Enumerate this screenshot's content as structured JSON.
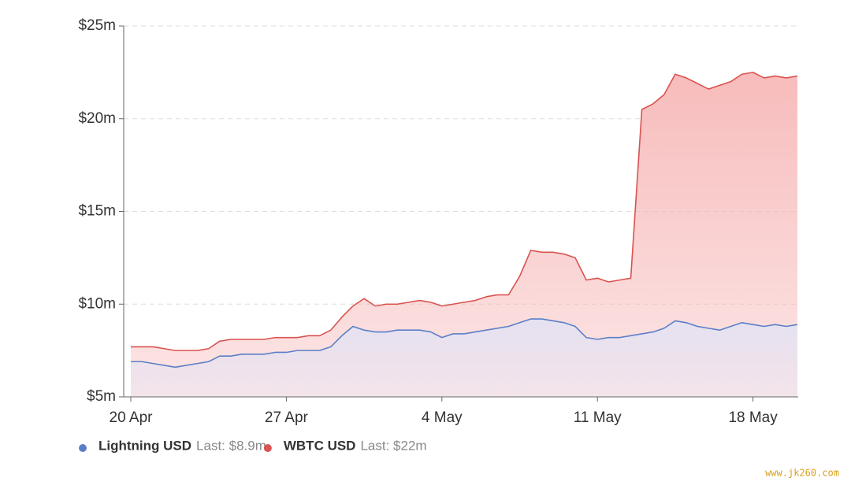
{
  "chart_data": {
    "type": "line",
    "categories": [
      "20 Apr",
      null,
      null,
      null,
      null,
      null,
      null,
      null,
      null,
      null,
      null,
      null,
      null,
      null,
      "27 Apr",
      null,
      null,
      null,
      null,
      null,
      null,
      null,
      null,
      null,
      null,
      null,
      null,
      null,
      "4 May",
      null,
      null,
      null,
      null,
      null,
      null,
      null,
      null,
      null,
      null,
      null,
      null,
      null,
      "11 May",
      null,
      null,
      null,
      null,
      null,
      null,
      null,
      null,
      null,
      null,
      null,
      null,
      null,
      "18 May",
      null,
      null,
      null,
      null
    ],
    "series": [
      {
        "name": "Lightning USD",
        "last_label": "Last: $8.9m",
        "color": "#5b7fc7",
        "area_color": "#e4e2f3",
        "values": [
          6.9,
          6.9,
          6.8,
          6.7,
          6.6,
          6.7,
          6.8,
          6.9,
          7.2,
          7.2,
          7.3,
          7.3,
          7.3,
          7.4,
          7.4,
          7.5,
          7.5,
          7.5,
          7.7,
          8.3,
          8.8,
          8.6,
          8.5,
          8.5,
          8.6,
          8.6,
          8.6,
          8.5,
          8.2,
          8.4,
          8.4,
          8.5,
          8.6,
          8.7,
          8.8,
          9.0,
          9.2,
          9.2,
          9.1,
          9.0,
          8.8,
          8.2,
          8.1,
          8.2,
          8.2,
          8.3,
          8.4,
          8.5,
          8.7,
          9.1,
          9.0,
          8.8,
          8.7,
          8.6,
          8.8,
          9.0,
          8.9,
          8.8,
          8.9,
          8.8,
          8.9
        ]
      },
      {
        "name": "WBTC USD",
        "last_label": "Last: $22m",
        "color": "#d9534f",
        "area_color": "#f7b8b8",
        "values": [
          7.7,
          7.7,
          7.7,
          7.6,
          7.5,
          7.5,
          7.5,
          7.6,
          8.0,
          8.1,
          8.1,
          8.1,
          8.1,
          8.2,
          8.2,
          8.2,
          8.3,
          8.3,
          8.6,
          9.3,
          9.9,
          10.3,
          9.9,
          10.0,
          10.0,
          10.1,
          10.2,
          10.1,
          9.9,
          10.0,
          10.1,
          10.2,
          10.4,
          10.5,
          10.5,
          11.5,
          12.9,
          12.8,
          12.8,
          12.7,
          12.5,
          11.3,
          11.4,
          11.2,
          11.3,
          11.4,
          20.5,
          20.8,
          21.3,
          22.4,
          22.2,
          21.9,
          21.6,
          21.8,
          22.0,
          22.4,
          22.5,
          22.2,
          22.3,
          22.2,
          22.3
        ]
      }
    ],
    "ylim": [
      5,
      25
    ],
    "yticks": [
      {
        "value": 5,
        "label": "$5m"
      },
      {
        "value": 10,
        "label": "$10m"
      },
      {
        "value": 15,
        "label": "$15m"
      },
      {
        "value": 20,
        "label": "$20m"
      },
      {
        "value": 25,
        "label": "$25m"
      }
    ],
    "grid": true,
    "watermark": "www.jk260.com"
  }
}
